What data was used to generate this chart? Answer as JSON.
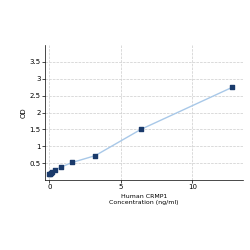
{
  "x": [
    0,
    0.05,
    0.1,
    0.2,
    0.4,
    0.8,
    1.6,
    3.2,
    6.4,
    12.8
  ],
  "y": [
    0.175,
    0.19,
    0.21,
    0.235,
    0.295,
    0.38,
    0.52,
    0.72,
    1.5,
    2.75
  ],
  "xlabel_line1": "Human CRMP1",
  "xlabel_line2": "Concentration (ng/ml)",
  "ylabel": "OD",
  "xlim": [
    -0.3,
    13.5
  ],
  "ylim": [
    0,
    4.0
  ],
  "yticks": [
    0.5,
    1.0,
    1.5,
    2.0,
    2.5,
    3.0,
    3.5
  ],
  "xticks": [
    0,
    5,
    10
  ],
  "marker_color": "#1a3a6b",
  "line_color": "#a8c8e8",
  "background_color": "#ffffff",
  "grid_color": "#cccccc",
  "marker_size": 3.5,
  "line_width": 1.0
}
